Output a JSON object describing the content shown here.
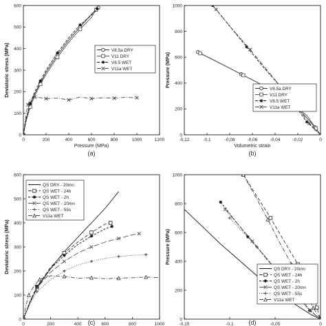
{
  "chart_data": [
    {
      "type": "line",
      "panel_label": "(a)",
      "xlabel": "Pressure (MPa)",
      "ylabel": "Deviatoric stress (MPa)",
      "xlim": [
        0,
        1200
      ],
      "ylim": [
        0,
        600
      ],
      "xticks": [
        0,
        200,
        400,
        600,
        800,
        1000,
        1200
      ],
      "yticks": [
        0,
        100,
        200,
        300,
        400,
        500,
        600
      ],
      "grid": false,
      "legend_position": "right",
      "series": [
        {
          "name": "V8.5a DRY",
          "color": "#333333",
          "dash": "",
          "marker": "circle",
          "x": [
            0,
            20,
            60,
            100,
            150,
            200,
            300,
            400,
            500,
            600,
            660
          ],
          "y": [
            0,
            60,
            140,
            190,
            240,
            290,
            370,
            440,
            500,
            560,
            590
          ]
        },
        {
          "name": "V11 DRY",
          "color": "#555555",
          "dash": "",
          "marker": "square",
          "x": [
            0,
            20,
            60,
            100,
            150,
            200,
            300,
            400,
            500,
            600,
            640
          ],
          "y": [
            0,
            55,
            130,
            180,
            235,
            280,
            360,
            430,
            490,
            545,
            580
          ]
        },
        {
          "name": "V8.5 WET",
          "color": "#111111",
          "dash": "4,2",
          "marker": "star",
          "x": [
            0,
            20,
            60,
            100,
            150,
            200,
            300,
            400,
            500,
            600,
            650
          ],
          "y": [
            0,
            65,
            145,
            200,
            250,
            300,
            380,
            450,
            510,
            555,
            585
          ]
        },
        {
          "name": "V11a WET",
          "color": "#444444",
          "dash": "6,2,1,2",
          "marker": "x",
          "x": [
            0,
            20,
            40,
            60,
            100,
            150,
            200,
            300,
            400,
            500,
            600,
            700,
            800,
            900,
            1000
          ],
          "y": [
            0,
            80,
            140,
            165,
            175,
            172,
            168,
            170,
            162,
            175,
            168,
            172,
            170,
            174,
            172
          ]
        }
      ]
    },
    {
      "type": "line",
      "panel_label": "(b)",
      "xlabel": "Volumetric strain",
      "ylabel": "Pressure (MPa)",
      "xlim": [
        -0.12,
        0
      ],
      "ylim": [
        0,
        1000
      ],
      "xticks": [
        -0.12,
        -0.1,
        -0.08,
        -0.06,
        -0.04,
        -0.02,
        0
      ],
      "xtick_labels": [
        "-0,12",
        "-0,1",
        "-0,08",
        "-0,06",
        "-0,04",
        "-0,02",
        "0"
      ],
      "yticks": [
        0,
        200,
        400,
        600,
        800,
        1000
      ],
      "grid": false,
      "legend_position": "bottom-right",
      "series": [
        {
          "name": "V8.5a DRY",
          "color": "#333333",
          "dash": "",
          "marker": "circle",
          "x": [
            -0.108,
            -0.09,
            -0.07,
            -0.05,
            -0.03,
            -0.015,
            -0.005,
            0
          ],
          "y": [
            640,
            560,
            470,
            380,
            270,
            160,
            60,
            0
          ]
        },
        {
          "name": "V11 DRY",
          "color": "#555555",
          "dash": "",
          "marker": "square",
          "x": [
            -0.106,
            -0.088,
            -0.068,
            -0.048,
            -0.028,
            -0.012,
            -0.004,
            0
          ],
          "y": [
            630,
            550,
            460,
            370,
            260,
            150,
            50,
            0
          ]
        },
        {
          "name": "V8.5 WET",
          "color": "#111111",
          "dash": "4,2",
          "marker": "star",
          "x": [
            -0.095,
            -0.08,
            -0.065,
            -0.05,
            -0.035,
            -0.022,
            -0.012,
            0
          ],
          "y": [
            1000,
            840,
            680,
            520,
            370,
            220,
            100,
            0
          ]
        },
        {
          "name": "V11a WET",
          "color": "#444444",
          "dash": "6,2,1,2",
          "marker": "x",
          "x": [
            -0.092,
            -0.078,
            -0.062,
            -0.048,
            -0.034,
            -0.02,
            -0.01,
            0
          ],
          "y": [
            970,
            820,
            660,
            510,
            360,
            210,
            90,
            0
          ]
        }
      ]
    },
    {
      "type": "line",
      "panel_label": "(c)",
      "xlabel": "Pressure (MPa)",
      "ylabel": "Deviatoric stress (MPa)",
      "xlim": [
        0,
        1000
      ],
      "ylim": [
        0,
        600
      ],
      "xticks": [
        0,
        200,
        400,
        600,
        800,
        1000
      ],
      "yticks": [
        0,
        100,
        200,
        300,
        400,
        500,
        600
      ],
      "grid": false,
      "legend_position": "top-left",
      "series": [
        {
          "name": "QS DRY - 20mn",
          "color": "#111111",
          "dash": "",
          "marker": "none",
          "x": [
            0,
            50,
            100,
            200,
            300,
            400,
            500,
            600,
            700
          ],
          "y": [
            0,
            70,
            130,
            210,
            280,
            340,
            400,
            460,
            530
          ]
        },
        {
          "name": "QS WET - 24h",
          "color": "#333333",
          "dash": "5,3",
          "marker": "square",
          "x": [
            0,
            50,
            100,
            200,
            300,
            400,
            500,
            600,
            640
          ],
          "y": [
            0,
            75,
            135,
            215,
            275,
            320,
            360,
            395,
            400
          ]
        },
        {
          "name": "QS WET - 2h",
          "color": "#111111",
          "dash": "3,2",
          "marker": "star",
          "x": [
            0,
            50,
            100,
            200,
            300,
            400,
            500,
            600,
            650
          ],
          "y": [
            0,
            75,
            135,
            210,
            265,
            310,
            345,
            375,
            385
          ]
        },
        {
          "name": "QS WET - 20mn",
          "color": "#555555",
          "dash": "8,3",
          "marker": "x",
          "x": [
            0,
            50,
            100,
            200,
            300,
            400,
            500,
            600,
            700,
            800,
            850
          ],
          "y": [
            0,
            70,
            130,
            195,
            240,
            275,
            300,
            320,
            335,
            350,
            355
          ]
        },
        {
          "name": "QS WET - 55s",
          "color": "#444444",
          "dash": "1,2",
          "marker": "plus",
          "x": [
            0,
            50,
            100,
            200,
            300,
            400,
            500,
            600,
            700,
            800,
            900
          ],
          "y": [
            0,
            65,
            115,
            165,
            200,
            225,
            240,
            252,
            260,
            265,
            268
          ]
        },
        {
          "name": "V11a WET",
          "color": "#444444",
          "dash": "6,2,1,2",
          "marker": "triangle",
          "x": [
            0,
            20,
            40,
            80,
            120,
            200,
            300,
            400,
            500,
            600,
            700,
            800,
            900,
            1000
          ],
          "y": [
            0,
            60,
            100,
            140,
            165,
            180,
            178,
            170,
            172,
            168,
            170,
            172,
            175,
            172
          ]
        }
      ]
    },
    {
      "type": "line",
      "panel_label": "(d)",
      "xlabel": "Volumetric strain",
      "ylabel": "Pressure (MPa)",
      "xlim": [
        -0.15,
        0
      ],
      "ylim": [
        0,
        1000
      ],
      "xticks": [
        -0.15,
        -0.1,
        -0.05,
        0
      ],
      "xtick_labels": [
        "-0,15",
        "-0,1",
        "-0,05",
        "0"
      ],
      "yticks": [
        0,
        200,
        400,
        600,
        800,
        1000
      ],
      "grid": false,
      "legend_position": "bottom-right",
      "series": [
        {
          "name": "QS DRY - 20mn",
          "color": "#111111",
          "dash": "",
          "marker": "none",
          "x": [
            -0.15,
            -0.13,
            -0.11,
            -0.09,
            -0.07,
            -0.05,
            -0.03,
            -0.01,
            0
          ],
          "y": [
            760,
            640,
            520,
            410,
            300,
            200,
            110,
            30,
            0
          ]
        },
        {
          "name": "QS WET - 24h",
          "color": "#333333",
          "dash": "5,3",
          "marker": "square",
          "x": [
            -0.085,
            -0.07,
            -0.055,
            -0.04,
            -0.025,
            -0.012,
            -0.004,
            0
          ],
          "y": [
            1000,
            850,
            700,
            540,
            380,
            220,
            80,
            0
          ]
        },
        {
          "name": "QS WET - 2h",
          "color": "#111111",
          "dash": "3,2",
          "marker": "star",
          "x": [
            -0.11,
            -0.095,
            -0.08,
            -0.062,
            -0.045,
            -0.028,
            -0.012,
            0
          ],
          "y": [
            810,
            690,
            570,
            440,
            310,
            180,
            60,
            0
          ]
        },
        {
          "name": "QS WET - 20mn",
          "color": "#555555",
          "dash": "8,3",
          "marker": "x",
          "x": [
            -0.105,
            -0.09,
            -0.075,
            -0.06,
            -0.043,
            -0.027,
            -0.012,
            0
          ],
          "y": [
            760,
            650,
            540,
            420,
            300,
            180,
            60,
            0
          ]
        },
        {
          "name": "QS WET - 55s",
          "color": "#444444",
          "dash": "1,2",
          "marker": "plus",
          "x": [
            -0.1,
            -0.085,
            -0.07,
            -0.055,
            -0.04,
            -0.025,
            -0.011,
            0
          ],
          "y": [
            700,
            600,
            500,
            390,
            280,
            170,
            60,
            0
          ]
        },
        {
          "name": "V11a WET",
          "color": "#444444",
          "dash": "6,2,1,2",
          "marker": "triangle",
          "x": [
            -0.085,
            -0.07,
            -0.058,
            -0.045,
            -0.032,
            -0.02,
            -0.008,
            0
          ],
          "y": [
            1000,
            830,
            690,
            530,
            380,
            230,
            80,
            0
          ]
        }
      ]
    }
  ]
}
